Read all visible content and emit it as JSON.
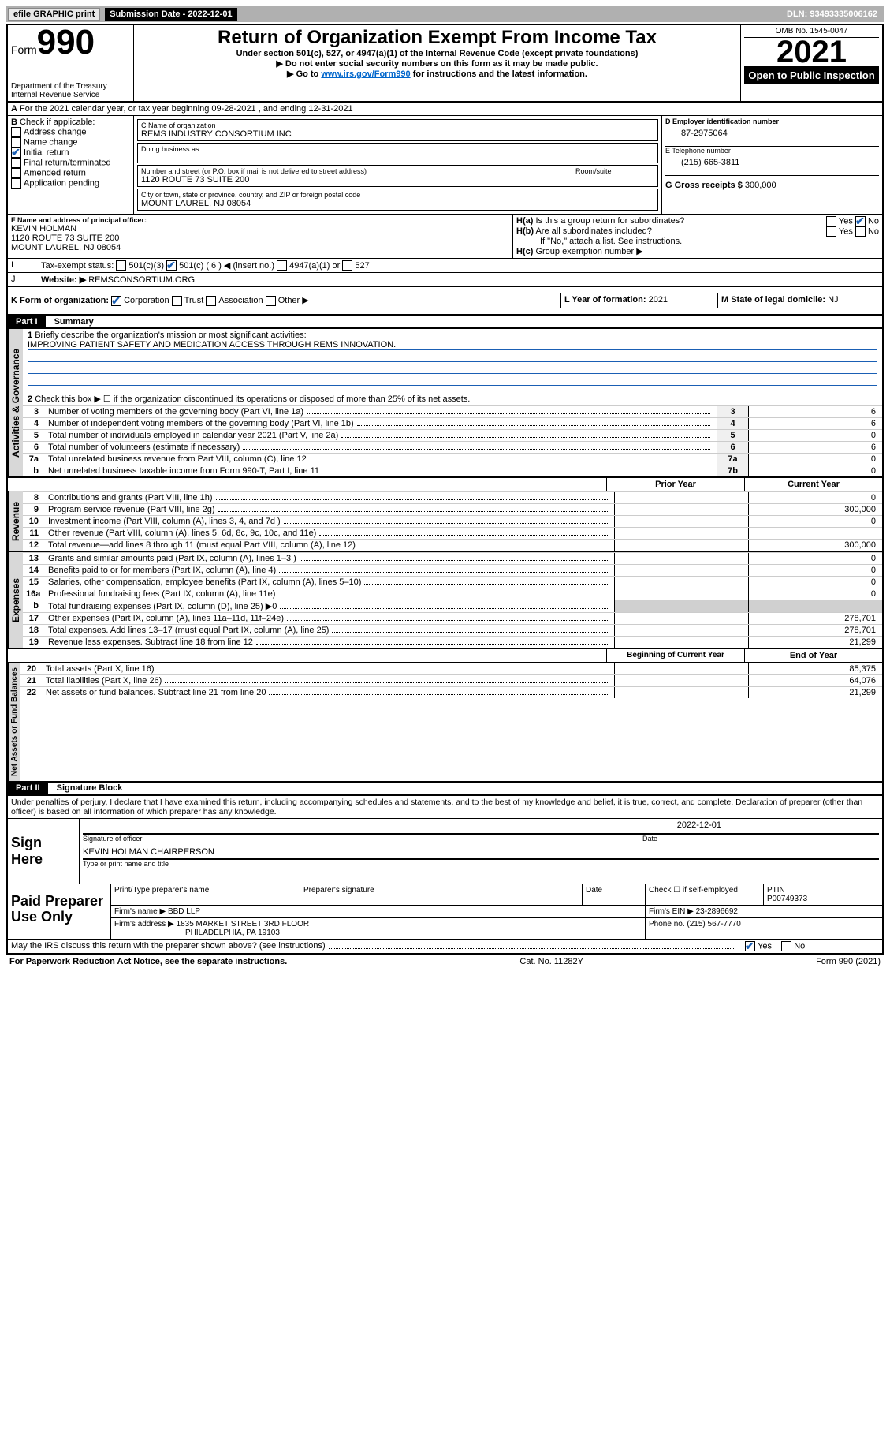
{
  "topbar": {
    "efile": "efile GRAPHIC print",
    "submission_label": "Submission Date - 2022-12-01",
    "dln": "DLN: 93493335006162"
  },
  "header": {
    "form_label": "Form",
    "form_number": "990",
    "department": "Department of the Treasury",
    "irs": "Internal Revenue Service",
    "title": "Return of Organization Exempt From Income Tax",
    "subtitle": "Under section 501(c), 527, or 4947(a)(1) of the Internal Revenue Code (except private foundations)",
    "line1": "▶ Do not enter social security numbers on this form as it may be made public.",
    "line2_pre": "▶ Go to ",
    "line2_link": "www.irs.gov/Form990",
    "line2_post": " for instructions and the latest information.",
    "omb": "OMB No. 1545-0047",
    "year": "2021",
    "open_pub": "Open to Public Inspection"
  },
  "A": {
    "text": "For the 2021 calendar year, or tax year beginning 09-28-2021    , and ending 12-31-2021"
  },
  "B": {
    "label": "B",
    "check_if": "Check if applicable:",
    "addr_change": "Address change",
    "name_change": "Name change",
    "init_return": "Initial return",
    "final_return": "Final return/terminated",
    "amended": "Amended return",
    "app_pending": "Application pending"
  },
  "C": {
    "name_label": "C Name of organization",
    "name": "REMS INDUSTRY CONSORTIUM INC",
    "dba_label": "Doing business as",
    "street_label": "Number and street (or P.O. box if mail is not delivered to street address)",
    "room_label": "Room/suite",
    "street": "1120 ROUTE 73 SUITE 200",
    "city_label": "City or town, state or province, country, and ZIP or foreign postal code",
    "city": "MOUNT LAUREL, NJ  08054"
  },
  "D": {
    "label": "D Employer identification number",
    "ein": "87-2975064"
  },
  "E": {
    "label": "E Telephone number",
    "phone": "(215) 665-3811"
  },
  "G": {
    "label": "G Gross receipts $",
    "amount": "300,000"
  },
  "F": {
    "label": "F  Name and address of principal officer:",
    "name": "KEVIN HOLMAN",
    "street": "1120 ROUTE 73 SUITE 200",
    "city": "MOUNT LAUREL, NJ  08054"
  },
  "H": {
    "a": "Is this a group return for subordinates?",
    "b": "Are all subordinates included?",
    "b_note": "If \"No,\" attach a list. See instructions.",
    "c": "Group exemption number ▶",
    "yes": "Yes",
    "no": "No"
  },
  "I": {
    "label": "Tax-exempt status:",
    "c3": "501(c)(3)",
    "c_other": "501(c) ( 6 ) ◀ (insert no.)",
    "4947": "4947(a)(1) or",
    "527": "527"
  },
  "J": {
    "label": "Website: ▶",
    "url": "REMSCONSORTIUM.ORG"
  },
  "K": {
    "label": "K Form of organization:",
    "corp": "Corporation",
    "trust": "Trust",
    "assoc": "Association",
    "other": "Other ▶"
  },
  "L": {
    "label": "L Year of formation:",
    "year": "2021"
  },
  "M": {
    "label": "M State of legal domicile:",
    "state": "NJ"
  },
  "part1": {
    "label": "Part I",
    "title": "Summary",
    "line1_label": "Briefly describe the organization's mission or most significant activities:",
    "line1_text": "IMPROVING PATIENT SAFETY AND MEDICATION ACCESS THROUGH REMS INNOVATION.",
    "line2": "Check this box ▶ ☐ if the organization discontinued its operations or disposed of more than 25% of its net assets.",
    "sidetab1": "Activities & Governance",
    "sidetab2": "Revenue",
    "sidetab3": "Expenses",
    "sidetab4": "Net Assets or Fund Balances",
    "prior_year": "Prior Year",
    "current_year": "Current Year",
    "begin_year": "Beginning of Current Year",
    "end_year": "End of Year",
    "lines_gov": [
      {
        "n": "3",
        "t": "Number of voting members of the governing body (Part VI, line 1a)",
        "box": "3",
        "v": "6"
      },
      {
        "n": "4",
        "t": "Number of independent voting members of the governing body (Part VI, line 1b)",
        "box": "4",
        "v": "6"
      },
      {
        "n": "5",
        "t": "Total number of individuals employed in calendar year 2021 (Part V, line 2a)",
        "box": "5",
        "v": "0"
      },
      {
        "n": "6",
        "t": "Total number of volunteers (estimate if necessary)",
        "box": "6",
        "v": "6"
      },
      {
        "n": "7a",
        "t": "Total unrelated business revenue from Part VIII, column (C), line 12",
        "box": "7a",
        "v": "0"
      },
      {
        "n": "b",
        "t": "Net unrelated business taxable income from Form 990-T, Part I, line 11",
        "box": "7b",
        "v": "0"
      }
    ],
    "lines_rev": [
      {
        "n": "8",
        "t": "Contributions and grants (Part VIII, line 1h)",
        "p": "",
        "c": "0"
      },
      {
        "n": "9",
        "t": "Program service revenue (Part VIII, line 2g)",
        "p": "",
        "c": "300,000"
      },
      {
        "n": "10",
        "t": "Investment income (Part VIII, column (A), lines 3, 4, and 7d )",
        "p": "",
        "c": "0"
      },
      {
        "n": "11",
        "t": "Other revenue (Part VIII, column (A), lines 5, 6d, 8c, 9c, 10c, and 11e)",
        "p": "",
        "c": ""
      },
      {
        "n": "12",
        "t": "Total revenue—add lines 8 through 11 (must equal Part VIII, column (A), line 12)",
        "p": "",
        "c": "300,000"
      }
    ],
    "lines_exp": [
      {
        "n": "13",
        "t": "Grants and similar amounts paid (Part IX, column (A), lines 1–3 )",
        "p": "",
        "c": "0"
      },
      {
        "n": "14",
        "t": "Benefits paid to or for members (Part IX, column (A), line 4)",
        "p": "",
        "c": "0"
      },
      {
        "n": "15",
        "t": "Salaries, other compensation, employee benefits (Part IX, column (A), lines 5–10)",
        "p": "",
        "c": "0"
      },
      {
        "n": "16a",
        "t": "Professional fundraising fees (Part IX, column (A), line 11e)",
        "p": "",
        "c": "0"
      },
      {
        "n": "b",
        "t": "Total fundraising expenses (Part IX, column (D), line 25) ▶0",
        "p": "shade",
        "c": "shade"
      },
      {
        "n": "17",
        "t": "Other expenses (Part IX, column (A), lines 11a–11d, 11f–24e)",
        "p": "",
        "c": "278,701"
      },
      {
        "n": "18",
        "t": "Total expenses. Add lines 13–17 (must equal Part IX, column (A), line 25)",
        "p": "",
        "c": "278,701"
      },
      {
        "n": "19",
        "t": "Revenue less expenses. Subtract line 18 from line 12",
        "p": "",
        "c": "21,299"
      }
    ],
    "lines_net": [
      {
        "n": "20",
        "t": "Total assets (Part X, line 16)",
        "p": "",
        "c": "85,375"
      },
      {
        "n": "21",
        "t": "Total liabilities (Part X, line 26)",
        "p": "",
        "c": "64,076"
      },
      {
        "n": "22",
        "t": "Net assets or fund balances. Subtract line 21 from line 20",
        "p": "",
        "c": "21,299"
      }
    ]
  },
  "part2": {
    "label": "Part II",
    "title": "Signature Block",
    "declaration": "Under penalties of perjury, I declare that I have examined this return, including accompanying schedules and statements, and to the best of my knowledge and belief, it is true, correct, and complete. Declaration of preparer (other than officer) is based on all information of which preparer has any knowledge.",
    "sign_here": "Sign Here",
    "sig_officer": "Signature of officer",
    "date": "Date",
    "sig_date": "2022-12-01",
    "officer_name": "KEVIN HOLMAN CHAIRPERSON",
    "type_name": "Type or print name and title",
    "paid_prep": "Paid Preparer Use Only",
    "prep_name": "Print/Type preparer's name",
    "prep_sig": "Preparer's signature",
    "prep_date": "Date",
    "check_if": "Check ☐ if self-employed",
    "ptin_label": "PTIN",
    "ptin": "P00749373",
    "firm_name_l": "Firm's name    ▶",
    "firm_name": "BBD LLP",
    "firm_ein_l": "Firm's EIN ▶",
    "firm_ein": "23-2896692",
    "firm_addr_l": "Firm's address ▶",
    "firm_addr1": "1835 MARKET STREET 3RD FLOOR",
    "firm_addr2": "PHILADELPHIA, PA  19103",
    "phone_l": "Phone no.",
    "phone": "(215) 567-7770",
    "discuss": "May the IRS discuss this return with the preparer shown above? (see instructions)",
    "yes": "Yes",
    "no": "No"
  },
  "footer": {
    "paperwork": "For Paperwork Reduction Act Notice, see the separate instructions.",
    "cat": "Cat. No. 11282Y",
    "form": "Form 990 (2021)"
  }
}
